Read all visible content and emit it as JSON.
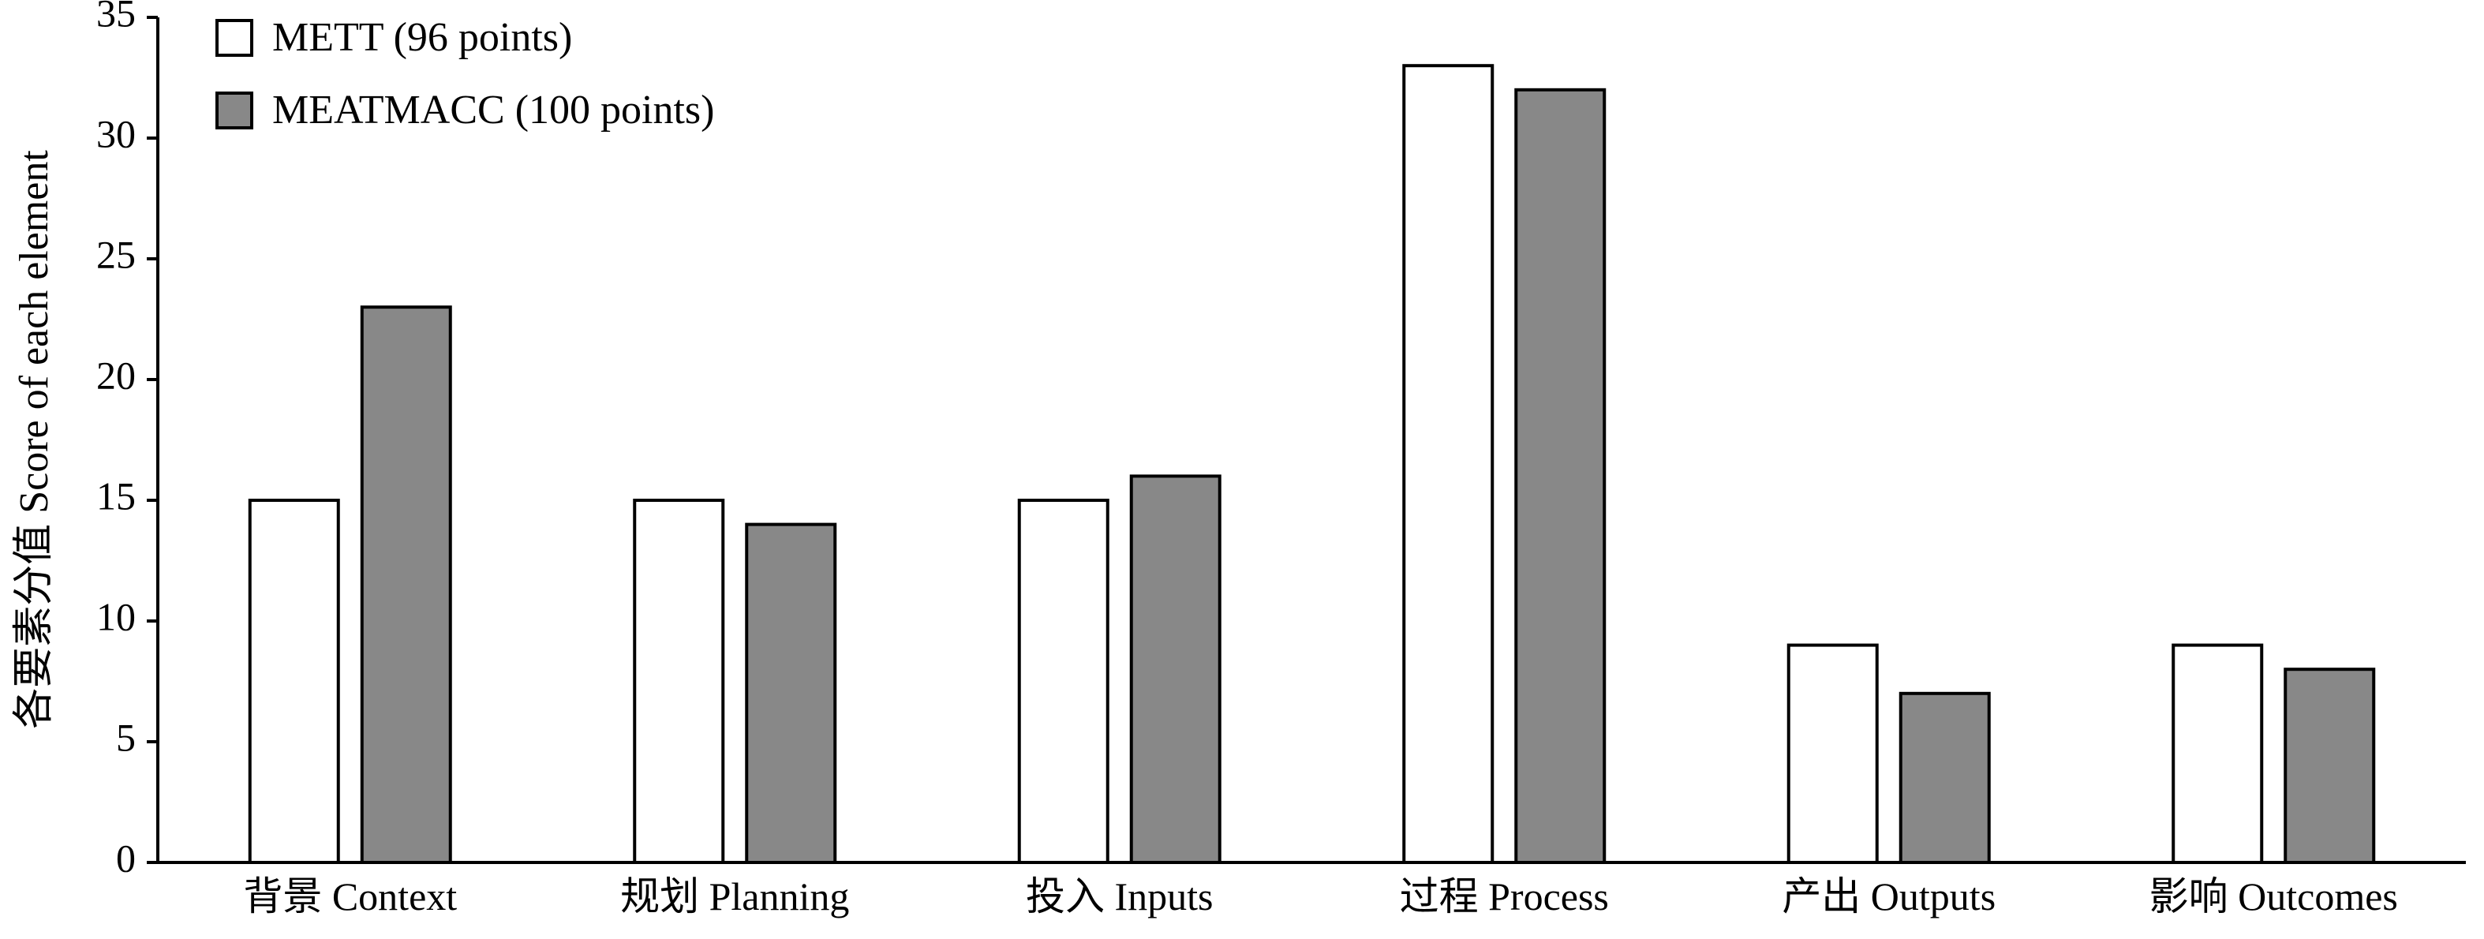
{
  "chart_data": {
    "type": "bar",
    "title": "",
    "xlabel": "",
    "ylabel": "各要素分值 Score of each element",
    "ylim": [
      0,
      35
    ],
    "yticks": [
      0,
      5,
      10,
      15,
      20,
      25,
      30,
      35
    ],
    "categories": [
      "背景 Context",
      "规划 Planning",
      "投入 Inputs",
      "过程 Process",
      "产出 Outputs",
      "影响 Outcomes"
    ],
    "series": [
      {
        "name": "METT (96 points)",
        "color": "#ffffff",
        "values": [
          15,
          15,
          15,
          33,
          9,
          9
        ]
      },
      {
        "name": "MEATMACC (100 points)",
        "color": "#888888",
        "values": [
          23,
          14,
          16,
          32,
          7,
          8
        ]
      }
    ],
    "grid": false,
    "legend_position": "top-left"
  }
}
